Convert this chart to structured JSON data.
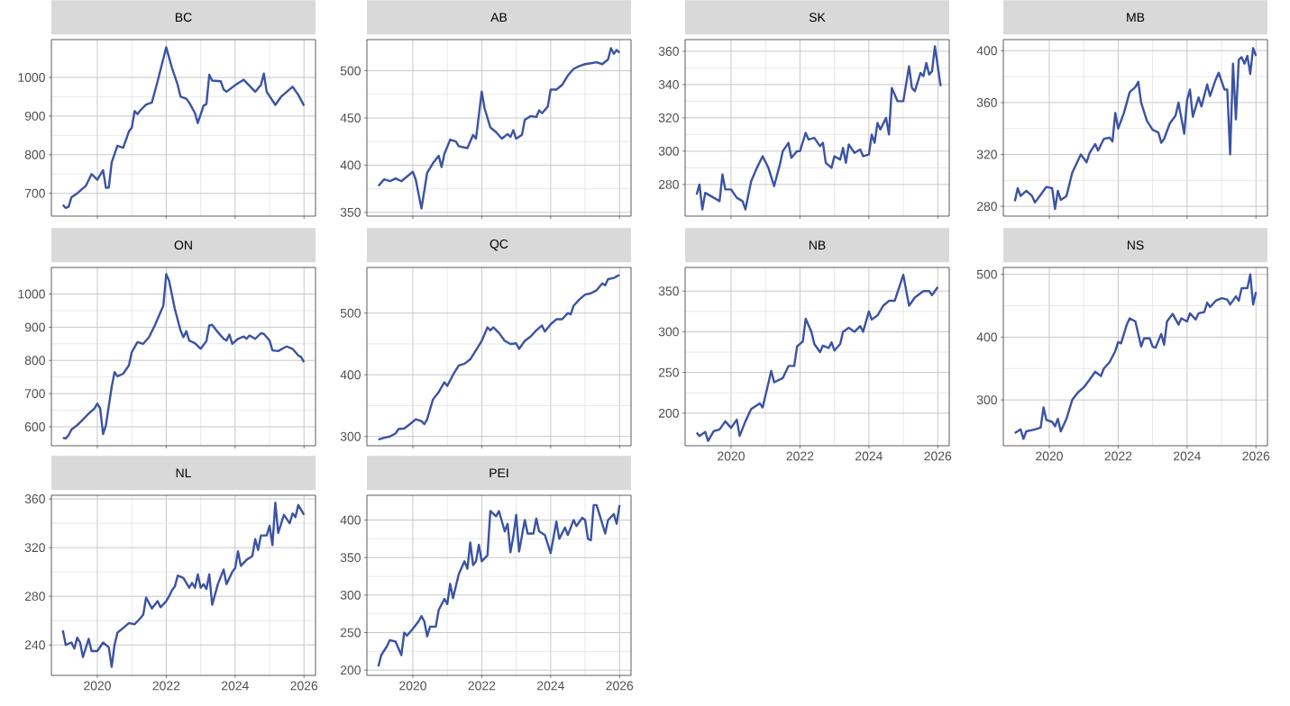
{
  "chart_data": [
    {
      "type": "line",
      "title": "BC",
      "grid": true,
      "tick_labels": "y",
      "xlim": [
        "2018-09",
        "2026-05"
      ],
      "ylim": [
        641,
        1098
      ],
      "xticks": [
        "2020",
        "2022",
        "2024",
        "2026"
      ],
      "yticks": [
        700,
        800,
        900,
        1000
      ],
      "x": [
        "2019-01",
        "2019-02",
        "2019-03",
        "2019-04",
        "2019-06",
        "2019-08",
        "2019-09",
        "2019-11",
        "2020-01",
        "2020-03",
        "2020-04",
        "2020-05",
        "2020-06",
        "2020-08",
        "2020-10",
        "2020-12",
        "2021-01",
        "2021-02",
        "2021-03",
        "2021-04",
        "2021-06",
        "2021-08",
        "2021-10",
        "2022-01",
        "2022-03",
        "2022-05",
        "2022-06",
        "2022-08",
        "2022-09",
        "2022-11",
        "2022-12",
        "2023-02",
        "2023-03",
        "2023-04",
        "2023-05",
        "2023-08",
        "2023-09",
        "2023-10",
        "2024-01",
        "2024-04",
        "2024-08",
        "2024-10",
        "2024-11",
        "2024-12",
        "2025-03",
        "2025-05",
        "2025-07",
        "2025-09",
        "2025-11",
        "2026-01"
      ],
      "series": [
        {
          "color": "#3a53a4",
          "values": [
            670,
            662,
            665,
            690,
            700,
            713,
            719,
            750,
            735,
            760,
            714,
            715,
            780,
            823,
            818,
            860,
            870,
            913,
            905,
            915,
            930,
            935,
            990,
            1078,
            1025,
            981,
            950,
            945,
            935,
            908,
            882,
            927,
            931,
            1007,
            992,
            990,
            969,
            963,
            980,
            994,
            963,
            981,
            1010,
            963,
            929,
            950,
            963,
            976,
            955,
            927
          ]
        }
      ]
    },
    {
      "type": "line",
      "title": "AB",
      "grid": true,
      "tick_labels": "y",
      "xlim": [
        "2018-09",
        "2026-05"
      ],
      "ylim": [
        346,
        533
      ],
      "xticks": [
        "2020",
        "2022",
        "2024",
        "2026"
      ],
      "yticks": [
        350,
        400,
        450,
        500
      ],
      "x": [
        "2019-01",
        "2019-03",
        "2019-05",
        "2019-07",
        "2019-09",
        "2019-11",
        "2020-01",
        "2020-02",
        "2020-04",
        "2020-06",
        "2020-08",
        "2020-10",
        "2020-11",
        "2020-12",
        "2021-02",
        "2021-04",
        "2021-05",
        "2021-08",
        "2021-10",
        "2021-11",
        "2022-01",
        "2022-02",
        "2022-04",
        "2022-06",
        "2022-08",
        "2022-10",
        "2022-11",
        "2022-12",
        "2023-01",
        "2023-03",
        "2023-04",
        "2023-06",
        "2023-08",
        "2023-09",
        "2023-10",
        "2023-12",
        "2024-01",
        "2024-03",
        "2024-05",
        "2024-07",
        "2024-09",
        "2024-11",
        "2025-01",
        "2025-03",
        "2025-05",
        "2025-07",
        "2025-09",
        "2025-10",
        "2025-11",
        "2025-12",
        "2026-01"
      ],
      "series": [
        {
          "color": "#3a53a4",
          "values": [
            378,
            385,
            383,
            386,
            383,
            388,
            393,
            385,
            354,
            392,
            402,
            410,
            398,
            412,
            427,
            425,
            420,
            418,
            432,
            428,
            478,
            460,
            440,
            435,
            428,
            433,
            430,
            437,
            428,
            432,
            448,
            452,
            451,
            458,
            455,
            462,
            480,
            480,
            485,
            495,
            502,
            505,
            507,
            508,
            509,
            507,
            512,
            524,
            518,
            522,
            519
          ]
        }
      ]
    },
    {
      "type": "line",
      "title": "SK",
      "grid": true,
      "tick_labels": "y",
      "xlim": [
        "2018-09",
        "2026-05"
      ],
      "ylim": [
        261,
        367
      ],
      "xticks": [
        "2020",
        "2022",
        "2024",
        "2026"
      ],
      "yticks": [
        280,
        300,
        320,
        340,
        360
      ],
      "x": [
        "2019-01",
        "2019-02",
        "2019-03",
        "2019-04",
        "2019-07",
        "2019-09",
        "2019-10",
        "2019-11",
        "2020-01",
        "2020-03",
        "2020-05",
        "2020-06",
        "2020-08",
        "2020-10",
        "2020-12",
        "2021-02",
        "2021-04",
        "2021-06",
        "2021-07",
        "2021-09",
        "2021-10",
        "2021-12",
        "2022-01",
        "2022-03",
        "2022-04",
        "2022-06",
        "2022-08",
        "2022-09",
        "2022-10",
        "2022-12",
        "2023-01",
        "2023-03",
        "2023-04",
        "2023-05",
        "2023-06",
        "2023-08",
        "2023-10",
        "2023-11",
        "2024-01",
        "2024-02",
        "2024-03",
        "2024-04",
        "2024-05",
        "2024-07",
        "2024-08",
        "2024-09",
        "2024-11",
        "2025-01",
        "2025-03",
        "2025-04",
        "2025-05",
        "2025-07",
        "2025-08",
        "2025-09",
        "2025-10",
        "2025-11",
        "2025-12",
        "2026-02"
      ],
      "series": [
        {
          "color": "#3a53a4",
          "values": [
            274,
            280,
            265,
            275,
            272,
            270,
            286,
            277,
            277,
            272,
            270,
            265,
            282,
            290,
            297,
            290,
            279,
            292,
            300,
            305,
            296,
            300,
            300,
            311,
            307,
            308,
            303,
            305,
            293,
            290,
            297,
            295,
            302,
            293,
            304,
            299,
            301,
            297,
            298,
            310,
            305,
            317,
            313,
            320,
            310,
            338,
            330,
            330,
            351,
            338,
            336,
            347,
            345,
            353,
            346,
            348,
            363,
            339
          ]
        }
      ]
    },
    {
      "type": "line",
      "title": "MB",
      "grid": true,
      "tick_labels": "y",
      "xlim": [
        "2018-09",
        "2026-05"
      ],
      "ylim": [
        272.5,
        408.5
      ],
      "xticks": [
        "2020",
        "2022",
        "2024",
        "2026"
      ],
      "yticks": [
        280,
        320,
        360,
        400
      ],
      "x": [
        "2019-01",
        "2019-02",
        "2019-03",
        "2019-05",
        "2019-07",
        "2019-08",
        "2019-10",
        "2019-12",
        "2020-02",
        "2020-03",
        "2020-04",
        "2020-05",
        "2020-07",
        "2020-09",
        "2020-12",
        "2021-02",
        "2021-03",
        "2021-05",
        "2021-06",
        "2021-08",
        "2021-10",
        "2021-11",
        "2021-12",
        "2022-01",
        "2022-03",
        "2022-05",
        "2022-07",
        "2022-08",
        "2022-09",
        "2022-11",
        "2023-01",
        "2023-03",
        "2023-04",
        "2023-05",
        "2023-07",
        "2023-09",
        "2023-10",
        "2023-12",
        "2024-01",
        "2024-02",
        "2024-03",
        "2024-05",
        "2024-06",
        "2024-08",
        "2024-09",
        "2024-11",
        "2024-12",
        "2025-02",
        "2025-03",
        "2025-04",
        "2025-05",
        "2025-06",
        "2025-07",
        "2025-08",
        "2025-09",
        "2025-10",
        "2025-11",
        "2025-12",
        "2026-01"
      ],
      "series": [
        {
          "color": "#3a53a4",
          "values": [
            284,
            294,
            288,
            292,
            288,
            283,
            289,
            295,
            294,
            278,
            292,
            285,
            288,
            306,
            320,
            314,
            321,
            328,
            323,
            332,
            333,
            330,
            352,
            340,
            352,
            368,
            372,
            376,
            360,
            346,
            339,
            337,
            329,
            332,
            344,
            350,
            360,
            336,
            362,
            370,
            349,
            364,
            357,
            374,
            365,
            378,
            383,
            370,
            370,
            320,
            390,
            347,
            393,
            395,
            390,
            396,
            382,
            402,
            396
          ]
        }
      ]
    },
    {
      "type": "line",
      "title": "ON",
      "grid": true,
      "tick_labels": "y",
      "xlim": [
        "2018-09",
        "2026-05"
      ],
      "ylim": [
        543,
        1080
      ],
      "xticks": [
        "2020",
        "2022",
        "2024",
        "2026"
      ],
      "yticks": [
        600,
        700,
        800,
        900,
        1000
      ],
      "x": [
        "2019-01",
        "2019-02",
        "2019-03",
        "2019-04",
        "2019-06",
        "2019-08",
        "2019-10",
        "2019-12",
        "2020-01",
        "2020-02",
        "2020-03",
        "2020-04",
        "2020-06",
        "2020-07",
        "2020-08",
        "2020-10",
        "2020-12",
        "2021-01",
        "2021-03",
        "2021-05",
        "2021-07",
        "2021-09",
        "2021-11",
        "2021-12",
        "2022-01",
        "2022-02",
        "2022-04",
        "2022-06",
        "2022-07",
        "2022-08",
        "2022-09",
        "2022-11",
        "2023-01",
        "2023-03",
        "2023-04",
        "2023-05",
        "2023-07",
        "2023-09",
        "2023-10",
        "2023-11",
        "2023-12",
        "2024-02",
        "2024-04",
        "2024-05",
        "2024-06",
        "2024-08",
        "2024-10",
        "2024-11",
        "2025-01",
        "2025-02",
        "2025-04",
        "2025-06",
        "2025-07",
        "2025-09",
        "2025-11",
        "2025-12",
        "2026-01"
      ],
      "series": [
        {
          "color": "#3a53a4",
          "values": [
            567,
            565,
            575,
            592,
            605,
            622,
            640,
            655,
            670,
            655,
            578,
            605,
            720,
            765,
            752,
            760,
            785,
            825,
            855,
            850,
            870,
            905,
            945,
            965,
            1060,
            1040,
            955,
            890,
            870,
            888,
            860,
            852,
            835,
            858,
            905,
            907,
            885,
            865,
            860,
            878,
            850,
            865,
            872,
            865,
            875,
            865,
            882,
            880,
            860,
            830,
            828,
            838,
            842,
            835,
            815,
            810,
            795
          ]
        }
      ]
    },
    {
      "type": "line",
      "title": "QC",
      "grid": true,
      "tick_labels": "y",
      "xlim": [
        "2018-09",
        "2026-05"
      ],
      "ylim": [
        285,
        574
      ],
      "xticks": [
        "2020",
        "2022",
        "2024",
        "2026"
      ],
      "yticks": [
        300,
        400,
        500
      ],
      "x": [
        "2019-01",
        "2019-03",
        "2019-05",
        "2019-07",
        "2019-08",
        "2019-10",
        "2019-12",
        "2020-02",
        "2020-04",
        "2020-05",
        "2020-06",
        "2020-08",
        "2020-10",
        "2020-12",
        "2021-01",
        "2021-03",
        "2021-05",
        "2021-07",
        "2021-09",
        "2021-11",
        "2022-01",
        "2022-03",
        "2022-04",
        "2022-05",
        "2022-07",
        "2022-09",
        "2022-11",
        "2023-01",
        "2023-02",
        "2023-04",
        "2023-06",
        "2023-08",
        "2023-10",
        "2023-11",
        "2024-01",
        "2024-03",
        "2024-05",
        "2024-07",
        "2024-08",
        "2024-09",
        "2024-11",
        "2025-01",
        "2025-03",
        "2025-05",
        "2025-07",
        "2025-08",
        "2025-09",
        "2025-11",
        "2026-01"
      ],
      "series": [
        {
          "color": "#3a53a4",
          "values": [
            295,
            298,
            300,
            305,
            312,
            313,
            320,
            328,
            325,
            320,
            328,
            360,
            372,
            388,
            382,
            400,
            415,
            418,
            425,
            440,
            455,
            477,
            472,
            477,
            468,
            455,
            450,
            451,
            442,
            455,
            462,
            472,
            480,
            470,
            482,
            490,
            490,
            500,
            498,
            512,
            522,
            530,
            532,
            537,
            548,
            545,
            555,
            557,
            562
          ]
        }
      ]
    },
    {
      "type": "line",
      "title": "NB",
      "grid": true,
      "xlim": [
        "2018-09",
        "2026-05"
      ],
      "ylim": [
        160,
        379
      ],
      "xticks": [
        "2020",
        "2022",
        "2024",
        "2026"
      ],
      "yticks": [
        200,
        250,
        300,
        350
      ],
      "x": [
        "2019-01",
        "2019-02",
        "2019-04",
        "2019-05",
        "2019-07",
        "2019-09",
        "2019-11",
        "2020-01",
        "2020-03",
        "2020-04",
        "2020-06",
        "2020-08",
        "2020-11",
        "2020-12",
        "2021-01",
        "2021-03",
        "2021-04",
        "2021-07",
        "2021-09",
        "2021-11",
        "2021-12",
        "2022-02",
        "2022-03",
        "2022-05",
        "2022-06",
        "2022-08",
        "2022-09",
        "2022-11",
        "2022-12",
        "2023-01",
        "2023-03",
        "2023-04",
        "2023-06",
        "2023-08",
        "2023-10",
        "2023-11",
        "2024-01",
        "2024-02",
        "2024-04",
        "2024-06",
        "2024-08",
        "2024-10",
        "2025-01",
        "2025-03",
        "2025-05",
        "2025-08",
        "2025-10",
        "2025-11",
        "2026-01"
      ],
      "series": [
        {
          "color": "#3a53a4",
          "values": [
            176,
            172,
            177,
            166,
            178,
            180,
            190,
            182,
            192,
            172,
            190,
            205,
            212,
            207,
            222,
            252,
            238,
            243,
            258,
            258,
            282,
            288,
            316,
            300,
            285,
            275,
            283,
            280,
            287,
            277,
            285,
            300,
            305,
            300,
            307,
            300,
            325,
            315,
            320,
            332,
            338,
            338,
            370,
            332,
            342,
            350,
            350,
            345,
            355
          ]
        }
      ]
    },
    {
      "type": "line",
      "title": "NS",
      "grid": true,
      "xlim": [
        "2018-09",
        "2026-05"
      ],
      "ylim": [
        227,
        511
      ],
      "xticks": [
        "2020",
        "2022",
        "2024",
        "2026"
      ],
      "yticks": [
        300,
        400,
        500
      ],
      "x": [
        "2019-01",
        "2019-03",
        "2019-04",
        "2019-05",
        "2019-08",
        "2019-10",
        "2019-11",
        "2019-12",
        "2020-02",
        "2020-03",
        "2020-04",
        "2020-05",
        "2020-07",
        "2020-09",
        "2020-11",
        "2021-01",
        "2021-03",
        "2021-05",
        "2021-07",
        "2021-08",
        "2021-10",
        "2021-12",
        "2022-01",
        "2022-02",
        "2022-04",
        "2022-05",
        "2022-07",
        "2022-09",
        "2022-10",
        "2022-12",
        "2023-01",
        "2023-02",
        "2023-04",
        "2023-05",
        "2023-06",
        "2023-08",
        "2023-10",
        "2023-11",
        "2024-01",
        "2024-02",
        "2024-04",
        "2024-05",
        "2024-07",
        "2024-08",
        "2024-09",
        "2024-11",
        "2025-01",
        "2025-03",
        "2025-04",
        "2025-06",
        "2025-07",
        "2025-08",
        "2025-10",
        "2025-11",
        "2025-12",
        "2026-01"
      ],
      "series": [
        {
          "color": "#3a53a4",
          "values": [
            247,
            253,
            238,
            250,
            253,
            256,
            288,
            268,
            265,
            258,
            270,
            250,
            270,
            300,
            312,
            320,
            332,
            345,
            338,
            350,
            360,
            378,
            392,
            390,
            420,
            430,
            425,
            385,
            398,
            398,
            385,
            383,
            405,
            388,
            425,
            437,
            420,
            430,
            425,
            438,
            428,
            438,
            440,
            455,
            448,
            458,
            462,
            460,
            452,
            465,
            458,
            478,
            478,
            500,
            452,
            472
          ]
        }
      ]
    },
    {
      "type": "line",
      "title": "NL",
      "grid": true,
      "xlim": [
        "2018-09",
        "2026-05"
      ],
      "ylim": [
        215,
        363
      ],
      "xticks": [
        "2020",
        "2022",
        "2024",
        "2026"
      ],
      "yticks": [
        240,
        280,
        320,
        360
      ],
      "x": [
        "2019-01",
        "2019-02",
        "2019-04",
        "2019-05",
        "2019-06",
        "2019-07",
        "2019-08",
        "2019-10",
        "2019-11",
        "2020-01",
        "2020-03",
        "2020-05",
        "2020-06",
        "2020-07",
        "2020-08",
        "2020-10",
        "2020-12",
        "2021-02",
        "2021-04",
        "2021-05",
        "2021-06",
        "2021-08",
        "2021-10",
        "2021-11",
        "2022-01",
        "2022-02",
        "2022-03",
        "2022-04",
        "2022-05",
        "2022-07",
        "2022-09",
        "2022-10",
        "2022-11",
        "2022-12",
        "2023-01",
        "2023-02",
        "2023-03",
        "2023-04",
        "2023-05",
        "2023-07",
        "2023-09",
        "2023-10",
        "2023-12",
        "2024-01",
        "2024-02",
        "2024-03",
        "2024-05",
        "2024-07",
        "2024-08",
        "2024-09",
        "2024-10",
        "2024-12",
        "2025-01",
        "2025-02",
        "2025-03",
        "2025-04",
        "2025-06",
        "2025-08",
        "2025-09",
        "2025-10",
        "2025-11",
        "2026-01"
      ],
      "series": [
        {
          "color": "#3a53a4",
          "values": [
            252,
            240,
            242,
            237,
            246,
            242,
            230,
            245,
            235,
            235,
            242,
            238,
            222,
            240,
            250,
            254,
            258,
            257,
            262,
            265,
            279,
            270,
            276,
            271,
            276,
            280,
            285,
            288,
            297,
            295,
            287,
            291,
            287,
            298,
            287,
            290,
            286,
            298,
            273,
            290,
            302,
            290,
            300,
            303,
            317,
            305,
            310,
            313,
            327,
            318,
            330,
            330,
            338,
            322,
            357,
            332,
            347,
            340,
            348,
            345,
            355,
            347
          ]
        }
      ]
    },
    {
      "type": "line",
      "title": "PEI",
      "grid": true,
      "xlim": [
        "2018-09",
        "2026-05"
      ],
      "ylim": [
        193,
        433
      ],
      "xticks": [
        "2020",
        "2022",
        "2024",
        "2026"
      ],
      "yticks": [
        200,
        250,
        300,
        350,
        400
      ],
      "x": [
        "2019-01",
        "2019-02",
        "2019-04",
        "2019-05",
        "2019-07",
        "2019-09",
        "2019-10",
        "2019-11",
        "2020-01",
        "2020-03",
        "2020-04",
        "2020-05",
        "2020-06",
        "2020-07",
        "2020-09",
        "2020-10",
        "2020-12",
        "2021-01",
        "2021-02",
        "2021-03",
        "2021-05",
        "2021-07",
        "2021-08",
        "2021-09",
        "2021-10",
        "2021-11",
        "2021-12",
        "2022-01",
        "2022-03",
        "2022-04",
        "2022-06",
        "2022-07",
        "2022-09",
        "2022-10",
        "2022-11",
        "2022-12",
        "2023-01",
        "2023-02",
        "2023-04",
        "2023-05",
        "2023-07",
        "2023-08",
        "2023-09",
        "2023-11",
        "2024-01",
        "2024-03",
        "2024-04",
        "2024-06",
        "2024-07",
        "2024-09",
        "2024-10",
        "2024-12",
        "2025-01",
        "2025-02",
        "2025-03",
        "2025-04",
        "2025-05",
        "2025-07",
        "2025-08",
        "2025-09",
        "2025-11",
        "2025-12",
        "2026-01"
      ],
      "series": [
        {
          "color": "#3a53a4",
          "values": [
            205,
            220,
            232,
            240,
            238,
            220,
            250,
            246,
            255,
            265,
            272,
            265,
            245,
            258,
            258,
            280,
            295,
            288,
            315,
            296,
            328,
            345,
            335,
            370,
            340,
            345,
            367,
            345,
            353,
            412,
            405,
            412,
            385,
            395,
            357,
            378,
            407,
            358,
            400,
            382,
            382,
            402,
            385,
            380,
            356,
            398,
            375,
            390,
            380,
            400,
            392,
            403,
            400,
            375,
            373,
            420,
            420,
            395,
            382,
            400,
            408,
            395,
            420
          ]
        }
      ]
    }
  ]
}
